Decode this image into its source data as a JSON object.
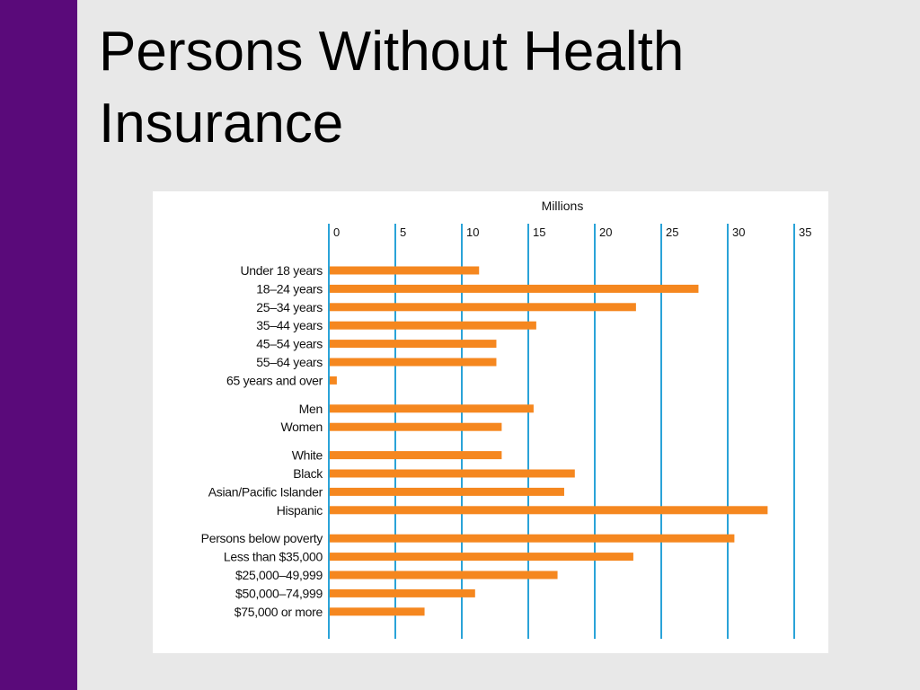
{
  "slide": {
    "title": "Persons Without Health Insurance",
    "accent_color": "#5a0a7a",
    "background_color": "#e8e8e8"
  },
  "chart_data": {
    "type": "bar",
    "orientation": "horizontal",
    "title": "",
    "axis_title": "Millions",
    "xlim": [
      0,
      35
    ],
    "x_ticks": [
      0,
      5,
      10,
      15,
      20,
      25,
      30,
      35
    ],
    "grid": true,
    "bar_color": "#f5871f",
    "grid_color": "#2aa3d8",
    "groups": [
      {
        "categories": [
          "Under 18 years",
          "18–24 years",
          "25–34 years",
          "35–44 years",
          "45–54 years",
          "55–64 years",
          "65 years and over"
        ],
        "values": [
          11.3,
          27.8,
          23.1,
          15.6,
          12.6,
          12.6,
          0.6
        ]
      },
      {
        "categories": [
          "Men",
          "Women"
        ],
        "values": [
          15.4,
          13.0
        ]
      },
      {
        "categories": [
          "White",
          "Black",
          "Asian/Pacific Islander",
          "Hispanic"
        ],
        "values": [
          13.0,
          18.5,
          17.7,
          33.0
        ]
      },
      {
        "categories": [
          "Persons below poverty",
          "Less than $35,000",
          "$25,000–49,999",
          "$50,000–74,999",
          "$75,000 or more"
        ],
        "values": [
          30.5,
          22.9,
          17.2,
          11.0,
          7.2
        ]
      }
    ]
  }
}
